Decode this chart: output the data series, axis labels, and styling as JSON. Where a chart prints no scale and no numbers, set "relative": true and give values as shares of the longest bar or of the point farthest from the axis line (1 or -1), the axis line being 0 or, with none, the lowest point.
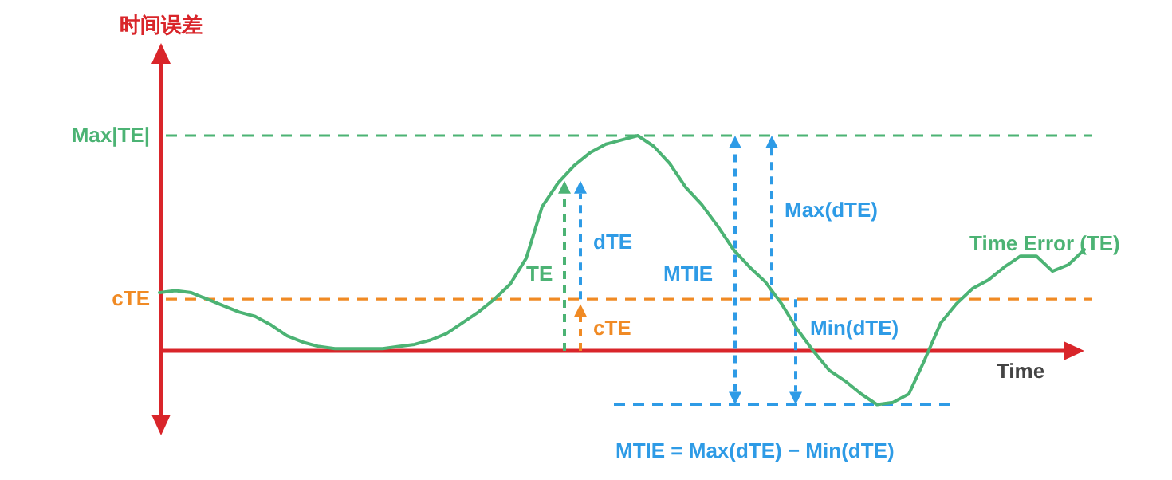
{
  "chart_data": {
    "type": "line",
    "relative": true,
    "ylabel": "时间误差",
    "xlabel": "Time",
    "marker": "none",
    "line_style": "solid",
    "categories": [
      null,
      null,
      null,
      null,
      null,
      null,
      null,
      null,
      null,
      null,
      null,
      null,
      null,
      null,
      null,
      null,
      null,
      null,
      null,
      null,
      null,
      null,
      null,
      null,
      null,
      null,
      null,
      null,
      null,
      null,
      null,
      null,
      null,
      null,
      null,
      null,
      null,
      null,
      null,
      null,
      null,
      null,
      null,
      null,
      null,
      null,
      null,
      null,
      null,
      null,
      null,
      null,
      null,
      null,
      null,
      null,
      null,
      null,
      null
    ],
    "series": [
      {
        "name": "Time Error (TE)",
        "color": "#4cb374",
        "values": [
          0.27,
          0.28,
          0.27,
          0.24,
          0.21,
          0.18,
          0.16,
          0.12,
          0.07,
          0.04,
          0.02,
          0.01,
          0.01,
          0.01,
          0.01,
          0.02,
          0.03,
          0.05,
          0.08,
          0.13,
          0.18,
          0.24,
          0.31,
          0.43,
          0.67,
          0.78,
          0.86,
          0.92,
          0.96,
          0.98,
          1.0,
          0.95,
          0.87,
          0.76,
          0.68,
          0.58,
          0.47,
          0.39,
          0.32,
          0.22,
          0.1,
          0.0,
          -0.09,
          -0.14,
          -0.2,
          -0.25,
          -0.24,
          -0.2,
          -0.04,
          0.13,
          0.22,
          0.29,
          0.33,
          0.39,
          0.44,
          0.44,
          0.37,
          0.4,
          0.47
        ]
      }
    ],
    "ref_lines": [
      {
        "axis": "y",
        "value": 1.0,
        "label": "Max|TE|",
        "color": "#4cb374",
        "line_style": "dashed"
      },
      {
        "axis": "y",
        "value": 0.24,
        "label": "cTE",
        "color": "#f08a24",
        "line_style": "dashed"
      },
      {
        "axis": "y",
        "value": -0.25,
        "label": null,
        "color": "#2e9be6",
        "line_style": "dashed"
      },
      {
        "axis": "y",
        "value": 0,
        "label": null,
        "color": "#d9252a",
        "line_style": "solid"
      }
    ],
    "annotations": [
      "TE",
      "dTE",
      "cTE",
      "MTIE",
      "Max(dTE)",
      "Min(dTE)",
      "MTIE = Max(dTE) − Min(dTE)"
    ]
  }
}
